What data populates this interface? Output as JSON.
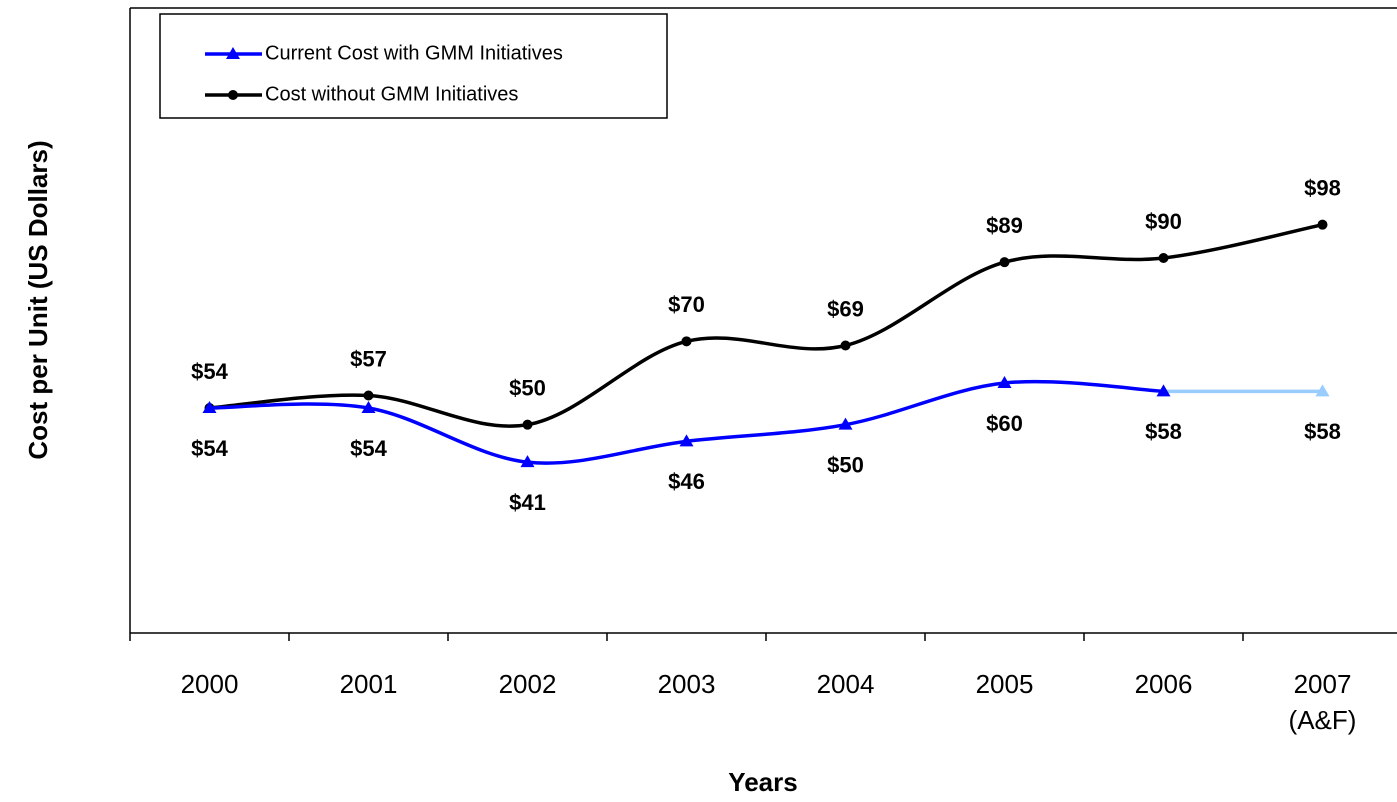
{
  "chart_data": {
    "type": "line",
    "x_label": "Years",
    "y_label": "Cost per Unit (US Dollars)",
    "categories": [
      "2000",
      "2001",
      "2002",
      "2003",
      "2004",
      "2005",
      "2006",
      "2007\n(A&F)"
    ],
    "ylim": [
      0,
      150
    ],
    "legend": "top-left",
    "series": [
      {
        "name": "Current Cost with GMM Initiatives",
        "color": "#0000ff",
        "last_segment_color": "#99ccff",
        "marker": "triangle",
        "label_position": "below",
        "values": [
          54,
          54,
          41,
          46,
          50,
          60,
          58,
          58
        ],
        "value_labels": [
          "$54",
          "$54",
          "$41",
          "$46",
          "$50",
          "$60",
          "$58",
          "$58"
        ]
      },
      {
        "name": "Cost without GMM Initiatives",
        "color": "#000000",
        "marker": "circle",
        "label_position": "above",
        "values": [
          54,
          57,
          50,
          70,
          69,
          89,
          90,
          98
        ],
        "value_labels": [
          "$54",
          "$57",
          "$50",
          "$70",
          "$69",
          "$89",
          "$90",
          "$98"
        ]
      }
    ]
  }
}
